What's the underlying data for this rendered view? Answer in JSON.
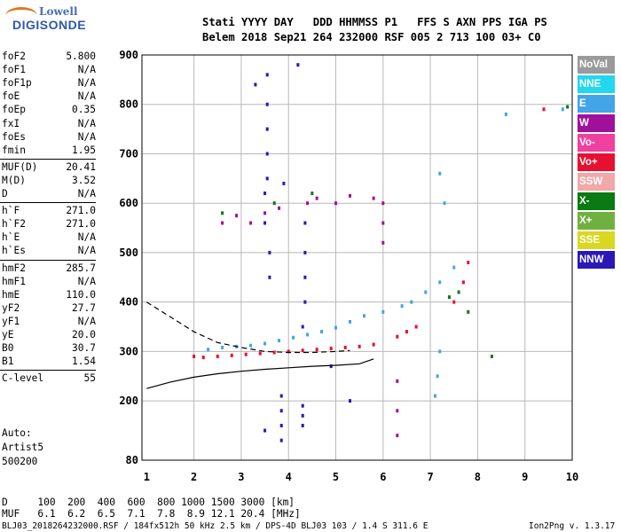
{
  "logo": {
    "line1": "Lowell",
    "line2": "DIGISONDE"
  },
  "header": {
    "labels": "Stati YYYY DAY   DDD HHMMSS P1   FFS S AXN PPS IGA PS",
    "values": "Belem 2018 Sep21 264 232000 RSF 005 2 713 100 03+ C0"
  },
  "params": [
    {
      "key": "foF2",
      "value": "5.800"
    },
    {
      "key": "foF1",
      "value": "N/A"
    },
    {
      "key": "foF1p",
      "value": "N/A"
    },
    {
      "key": "foE",
      "value": "N/A"
    },
    {
      "key": "foEp",
      "value": "0.35"
    },
    {
      "key": "fxI",
      "value": "N/A"
    },
    {
      "key": "foEs",
      "value": "N/A"
    },
    {
      "key": "fmin",
      "value": "1.95"
    },
    {
      "key": "MUF(D)",
      "value": "20.41"
    },
    {
      "key": "M(D)",
      "value": "3.52"
    },
    {
      "key": "D",
      "value": "N/A"
    },
    {
      "key": "h`F",
      "value": "271.0"
    },
    {
      "key": "h`F2",
      "value": "271.0"
    },
    {
      "key": "h`E",
      "value": "N/A"
    },
    {
      "key": "h`Es",
      "value": "N/A"
    },
    {
      "key": "hmF2",
      "value": "285.7"
    },
    {
      "key": "hmF1",
      "value": "N/A"
    },
    {
      "key": "hmE",
      "value": "110.0"
    },
    {
      "key": "yF2",
      "value": "27.7"
    },
    {
      "key": "yF1",
      "value": "N/A"
    },
    {
      "key": "yE",
      "value": "20.0"
    },
    {
      "key": "B0",
      "value": "30.7"
    },
    {
      "key": "B1",
      "value": "1.54"
    },
    {
      "key": "C-level",
      "value": "55"
    }
  ],
  "auto": {
    "line1": "Auto:",
    "line2": "Artist5",
    "line3": "500200"
  },
  "legend": [
    {
      "label": "NoVal",
      "color": "#9a9a9a"
    },
    {
      "label": "NNE",
      "color": "#22d7f0"
    },
    {
      "label": "E",
      "color": "#42a5e8"
    },
    {
      "label": "W",
      "color": "#a0109a"
    },
    {
      "label": "Vo-",
      "color": "#f040a0"
    },
    {
      "label": "Vo+",
      "color": "#e81030"
    },
    {
      "label": "SSW",
      "color": "#f0a8a8"
    },
    {
      "label": "X-",
      "color": "#0a7a14"
    },
    {
      "label": "X+",
      "color": "#70b040"
    },
    {
      "label": "SSE",
      "color": "#d8d820"
    },
    {
      "label": "NNW",
      "color": "#2a18b8"
    }
  ],
  "footer": {
    "d_row": "D     100  200  400  600  800 1000 1500 3000 [km]",
    "muf_row": "MUF   6.1  6.2  6.5  7.1  7.8  8.9 12.1 20.4 [MHz]",
    "file_info": "BLJ03_2018264232000.RSF / 184fx512h 50 kHz 2.5 km / DPS-4D BLJ03 103 / 1.4 S 311.6 E",
    "version": "Ion2Png v. 1.3.17"
  },
  "chart_data": {
    "type": "scatter",
    "title": "",
    "xlabel": "",
    "ylabel": "",
    "xlim": [
      0.9,
      10
    ],
    "ylim": [
      80,
      900
    ],
    "x_ticks": [
      "1",
      "2",
      "3",
      "4",
      "5",
      "6",
      "7",
      "8",
      "9",
      "10"
    ],
    "y_ticks": [
      "80",
      "200",
      "300",
      "400",
      "500",
      "600",
      "700",
      "800",
      "900"
    ],
    "y_tick_values": [
      80,
      200,
      300,
      400,
      500,
      600,
      700,
      800,
      900
    ],
    "x_tick_values": [
      1,
      2,
      3,
      4,
      5,
      6,
      7,
      8,
      9,
      10
    ],
    "grid": true,
    "series": [
      {
        "color": "#42a5e8",
        "points": [
          [
            2.3,
            304
          ],
          [
            2.6,
            308
          ],
          [
            2.9,
            310
          ],
          [
            3.2,
            312
          ],
          [
            3.5,
            316
          ],
          [
            3.8,
            322
          ],
          [
            4.1,
            328
          ],
          [
            4.4,
            334
          ],
          [
            4.7,
            340
          ],
          [
            5.0,
            348
          ],
          [
            5.3,
            360
          ],
          [
            5.6,
            372
          ],
          [
            6.0,
            380
          ],
          [
            6.4,
            392
          ],
          [
            6.6,
            400
          ],
          [
            6.9,
            420
          ],
          [
            7.2,
            440
          ],
          [
            7.5,
            470
          ],
          [
            7.2,
            300
          ],
          [
            7.15,
            250
          ],
          [
            7.1,
            210
          ],
          [
            7.2,
            660
          ],
          [
            7.3,
            600
          ],
          [
            8.6,
            780
          ],
          [
            9.8,
            790
          ]
        ]
      },
      {
        "color": "#e81030",
        "points": [
          [
            2.0,
            290
          ],
          [
            2.2,
            288
          ],
          [
            2.5,
            290
          ],
          [
            2.8,
            292
          ],
          [
            3.1,
            294
          ],
          [
            3.4,
            296
          ],
          [
            3.7,
            298
          ],
          [
            4.0,
            300
          ],
          [
            4.3,
            302
          ],
          [
            4.6,
            304
          ],
          [
            4.9,
            306
          ],
          [
            5.2,
            308
          ],
          [
            5.5,
            310
          ],
          [
            5.8,
            314
          ],
          [
            6.3,
            330
          ],
          [
            6.5,
            340
          ],
          [
            6.7,
            350
          ],
          [
            7.5,
            400
          ],
          [
            7.7,
            440
          ],
          [
            7.8,
            480
          ],
          [
            9.4,
            790
          ]
        ]
      },
      {
        "color": "#a0109a",
        "points": [
          [
            2.6,
            560
          ],
          [
            2.9,
            575
          ],
          [
            3.2,
            560
          ],
          [
            3.5,
            580
          ],
          [
            3.8,
            590
          ],
          [
            4.4,
            600
          ],
          [
            4.6,
            610
          ],
          [
            5.0,
            600
          ],
          [
            5.3,
            615
          ],
          [
            5.8,
            610
          ],
          [
            6.0,
            520
          ],
          [
            6.0,
            560
          ],
          [
            6.0,
            600
          ],
          [
            6.3,
            240
          ],
          [
            6.3,
            180
          ],
          [
            6.3,
            130
          ]
        ]
      },
      {
        "color": "#2a18b8",
        "points": [
          [
            3.55,
            860
          ],
          [
            3.55,
            800
          ],
          [
            3.55,
            750
          ],
          [
            3.55,
            700
          ],
          [
            3.55,
            650
          ],
          [
            3.5,
            620
          ],
          [
            3.5,
            560
          ],
          [
            3.6,
            500
          ],
          [
            3.6,
            450
          ],
          [
            3.9,
            640
          ],
          [
            4.35,
            560
          ],
          [
            4.35,
            500
          ],
          [
            4.35,
            450
          ],
          [
            4.35,
            400
          ],
          [
            4.3,
            350
          ],
          [
            4.3,
            190
          ],
          [
            4.3,
            170
          ],
          [
            4.3,
            150
          ],
          [
            3.85,
            210
          ],
          [
            3.85,
            180
          ],
          [
            3.85,
            150
          ],
          [
            3.85,
            120
          ],
          [
            4.9,
            270
          ],
          [
            5.3,
            200
          ],
          [
            3.5,
            140
          ],
          [
            3.3,
            840
          ],
          [
            4.2,
            880
          ]
        ]
      },
      {
        "color": "#0a7a14",
        "points": [
          [
            2.6,
            580
          ],
          [
            3.7,
            600
          ],
          [
            4.5,
            620
          ],
          [
            7.4,
            410
          ],
          [
            7.6,
            420
          ],
          [
            7.8,
            380
          ],
          [
            8.3,
            290
          ],
          [
            9.9,
            795
          ]
        ]
      }
    ],
    "curves": [
      {
        "name": "",
        "style": "dashed",
        "x": [
          1.0,
          1.5,
          2.0,
          2.5,
          3.0,
          3.5,
          4.0,
          4.5,
          5.0,
          5.3
        ],
        "y": [
          400,
          370,
          340,
          318,
          308,
          300,
          298,
          298,
          300,
          302
        ]
      },
      {
        "name": "",
        "style": "solid",
        "x": [
          1.0,
          1.5,
          2.0,
          2.5,
          3.0,
          3.5,
          4.0,
          4.5,
          5.0,
          5.5,
          5.8
        ],
        "y": [
          225,
          238,
          248,
          255,
          260,
          264,
          267,
          270,
          272,
          275,
          285
        ]
      }
    ]
  }
}
